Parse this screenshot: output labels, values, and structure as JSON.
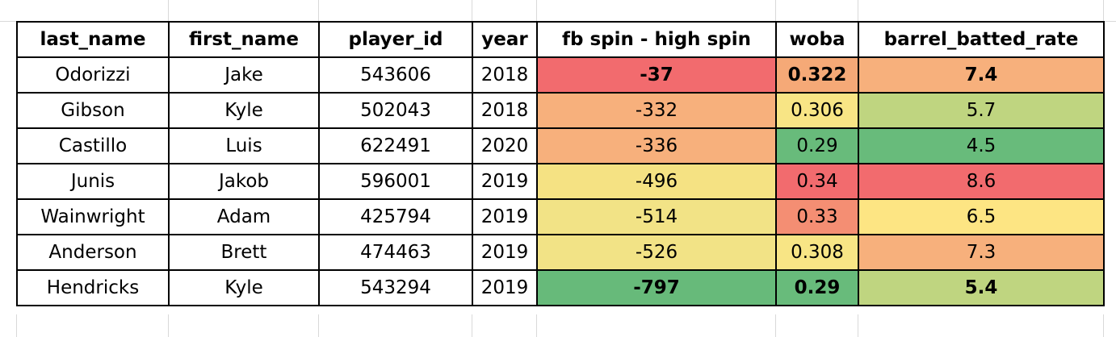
{
  "table": {
    "columns": [
      "last_name",
      "first_name",
      "player_id",
      "year",
      "fb spin - high spin",
      "woba",
      "barrel_batted_rate"
    ],
    "rows": [
      {
        "last_name": "Odorizzi",
        "first_name": "Jake",
        "player_id": "543606",
        "year": "2018",
        "spin": "-37",
        "woba": "0.322",
        "barrel": "7.4"
      },
      {
        "last_name": "Gibson",
        "first_name": "Kyle",
        "player_id": "502043",
        "year": "2018",
        "spin": "-332",
        "woba": "0.306",
        "barrel": "5.7"
      },
      {
        "last_name": "Castillo",
        "first_name": "Luis",
        "player_id": "622491",
        "year": "2020",
        "spin": "-336",
        "woba": "0.29",
        "barrel": "4.5"
      },
      {
        "last_name": "Junis",
        "first_name": "Jakob",
        "player_id": "596001",
        "year": "2019",
        "spin": "-496",
        "woba": "0.34",
        "barrel": "8.6"
      },
      {
        "last_name": "Wainwright",
        "first_name": "Adam",
        "player_id": "425794",
        "year": "2019",
        "spin": "-514",
        "woba": "0.33",
        "barrel": "6.5"
      },
      {
        "last_name": "Anderson",
        "first_name": "Brett",
        "player_id": "474463",
        "year": "2019",
        "spin": "-526",
        "woba": "0.308",
        "barrel": "7.3"
      },
      {
        "last_name": "Hendricks",
        "first_name": "Kyle",
        "player_id": "543294",
        "year": "2019",
        "spin": "-797",
        "woba": "0.29",
        "barrel": "5.4"
      }
    ],
    "fill_colors": {
      "spin": [
        "#f26b6e",
        "#f7b07c",
        "#f7b07c",
        "#f5e283",
        "#f2e386",
        "#f2e386",
        "#67ba7a"
      ],
      "woba": [
        "#f5a977",
        "#f8e585",
        "#68bb7b",
        "#f26b6e",
        "#f48e73",
        "#f8e585",
        "#68bb7b"
      ],
      "barrel": [
        "#f7b07c",
        "#bfd580",
        "#68bb7b",
        "#f26b6e",
        "#fde583",
        "#f7b07c",
        "#bfd580"
      ]
    },
    "bold_rows": [
      0,
      6
    ]
  }
}
